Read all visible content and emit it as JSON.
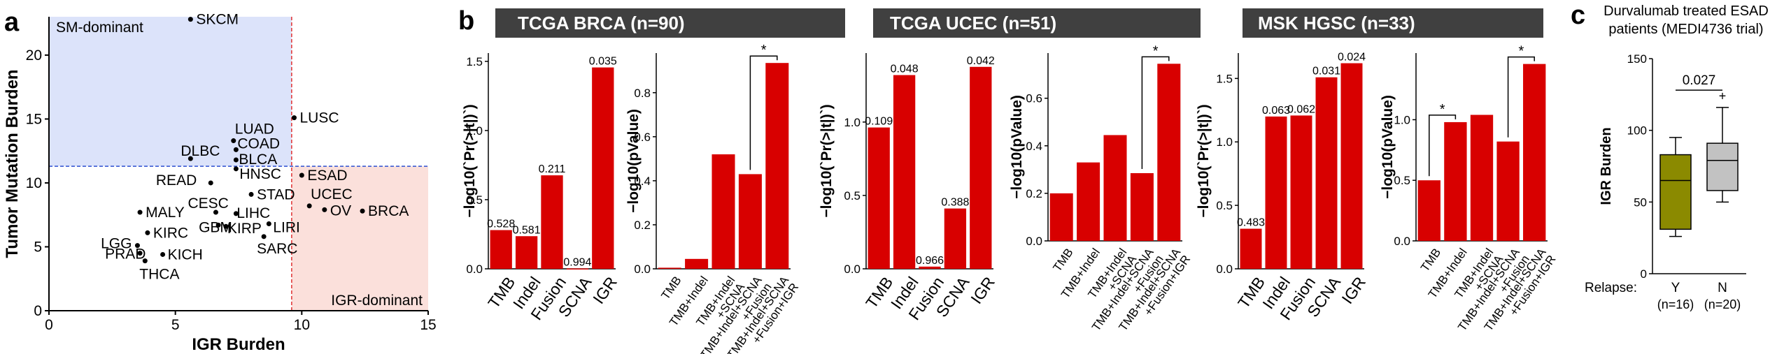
{
  "panel_letters": {
    "a": "a",
    "b": "b",
    "c": "c"
  },
  "banners": [
    "TCGA BRCA (n=90)",
    "TCGA UCEC (n=51)",
    "MSK HGSC (n=33)"
  ],
  "panel_c_title_line1": "Durvalumab treated ESAD",
  "panel_c_title_line2": "patients (MEDI4736 trial)",
  "colors": {
    "bar": "#d80000",
    "sm_region": "#dce3fa",
    "igr_region": "#fbe0db",
    "sm_text": "#2d4fd0",
    "igr_text": "#d8443c",
    "box_y": "#8b8a00",
    "box_n": "#c2c2c2",
    "banner": "#404040"
  },
  "chart_data": [
    {
      "id": "scatter",
      "type": "scatter",
      "xlabel": "IGR Burden",
      "ylabel": "Tumor Mutation Burden",
      "xlim": [
        0,
        15
      ],
      "ylim": [
        0,
        23
      ],
      "xticks": [
        0,
        5,
        10,
        15
      ],
      "yticks": [
        0,
        5,
        10,
        15,
        20
      ],
      "regions": {
        "sm_label": "SM-dominant",
        "igr_label": "IGR-dominant",
        "x_cut": 9.6,
        "y_cut": 11.3
      },
      "points": [
        {
          "label": "SKCM",
          "x": 5.6,
          "y": 22.8
        },
        {
          "label": "LUSC",
          "x": 9.7,
          "y": 15.1
        },
        {
          "label": "LUAD",
          "x": 7.3,
          "y": 13.3
        },
        {
          "label": "COAD",
          "x": 7.4,
          "y": 12.6
        },
        {
          "label": "BLCA",
          "x": 7.4,
          "y": 11.8
        },
        {
          "label": "DLBC",
          "x": 5.6,
          "y": 11.9
        },
        {
          "label": "READ",
          "x": 6.4,
          "y": 10.0
        },
        {
          "label": "HNSC",
          "x": 7.4,
          "y": 11.1
        },
        {
          "label": "ESAD",
          "x": 10.0,
          "y": 10.6
        },
        {
          "label": "STAD",
          "x": 8.0,
          "y": 9.1
        },
        {
          "label": "UCEC",
          "x": 10.3,
          "y": 8.2
        },
        {
          "label": "OV",
          "x": 10.9,
          "y": 7.9
        },
        {
          "label": "BRCA",
          "x": 12.4,
          "y": 7.8
        },
        {
          "label": "MALY",
          "x": 3.6,
          "y": 7.7
        },
        {
          "label": "CESC",
          "x": 6.6,
          "y": 7.7
        },
        {
          "label": "LIHC",
          "x": 7.4,
          "y": 7.6
        },
        {
          "label": "GBM",
          "x": 6.7,
          "y": 6.7
        },
        {
          "label": "KIRP",
          "x": 7.0,
          "y": 6.6
        },
        {
          "label": "LIRI",
          "x": 8.7,
          "y": 6.8
        },
        {
          "label": "KIRC",
          "x": 3.9,
          "y": 6.1
        },
        {
          "label": "SARC",
          "x": 8.5,
          "y": 5.8
        },
        {
          "label": "LGG",
          "x": 3.5,
          "y": 5.1
        },
        {
          "label": "PRAD",
          "x": 3.6,
          "y": 4.5
        },
        {
          "label": "KICH",
          "x": 4.5,
          "y": 4.4
        },
        {
          "label": "THCA",
          "x": 3.8,
          "y": 3.9
        }
      ]
    },
    {
      "id": "brca_pr",
      "type": "bar",
      "ylabel": "−log10(`Pr(>|t|)`)",
      "categories": [
        "TMB",
        "Indel",
        "Fusion",
        "SCNA",
        "IGR"
      ],
      "values": [
        0.28,
        0.236,
        0.676,
        0.0026,
        1.456
      ],
      "data_labels": [
        "0.528",
        "0.581",
        "0.211",
        "0.994",
        "0.035"
      ],
      "ylim": [
        0,
        1.56
      ],
      "yticks": [
        0.0,
        0.5,
        1.0,
        1.5
      ]
    },
    {
      "id": "brca_p",
      "type": "bar",
      "ylabel": "−log10(pValue)",
      "categories": [
        "TMB",
        "TMB+Indel",
        "TMB+Indel\n+SCNA",
        "TMB+Indel+SCNA\n+Fusion",
        "TMB+Indel+SCNA\n+Fusion+IGR"
      ],
      "values": [
        0.005,
        0.045,
        0.52,
        0.43,
        0.935
      ],
      "ylim": [
        0,
        0.98
      ],
      "yticks": [
        0.0,
        0.2,
        0.4,
        0.6,
        0.8
      ],
      "significance": {
        "from": 3,
        "to": 4,
        "label": "*"
      }
    },
    {
      "id": "ucec_pr",
      "type": "bar",
      "ylabel": "−log10(`Pr(>|t|)`)",
      "categories": [
        "TMB",
        "Indel",
        "Fusion",
        "SCNA",
        "IGR"
      ],
      "values": [
        0.963,
        1.32,
        0.015,
        0.411,
        1.376
      ],
      "data_labels": [
        "0.109",
        "0.048",
        "0.966",
        "0.388",
        "0.042"
      ],
      "ylim": [
        0,
        1.47
      ],
      "yticks": [
        0.0,
        0.5,
        1.0
      ],
      "significance": null
    },
    {
      "id": "ucec_p",
      "type": "bar",
      "ylabel": "−log10(pValue)",
      "categories": [
        "TMB",
        "TMB+Indel",
        "TMB+Indel\n+SCNA",
        "TMB+Indel+SCNA\n+Fusion",
        "TMB+Indel+SCNA\n+Fusion+IGR"
      ],
      "values": [
        0.2,
        0.33,
        0.445,
        0.285,
        0.745
      ],
      "ylim": [
        0,
        0.79
      ],
      "yticks": [
        0.0,
        0.2,
        0.4,
        0.6
      ],
      "significance": {
        "from": 3,
        "to": 4,
        "label": "*"
      }
    },
    {
      "id": "hgsc_pr",
      "type": "bar",
      "ylabel": "−log10(`Pr(>|t|)`)",
      "categories": [
        "TMB",
        "Indel",
        "Fusion",
        "SCNA",
        "IGR"
      ],
      "values": [
        0.316,
        1.2,
        1.208,
        1.509,
        1.62
      ],
      "data_labels": [
        "0.483",
        "0.063",
        "0.062",
        "0.031",
        "0.024"
      ],
      "ylim": [
        0,
        1.7
      ],
      "yticks": [
        0.0,
        0.5,
        1.0,
        1.5
      ]
    },
    {
      "id": "hgsc_p",
      "type": "bar",
      "ylabel": "−log10(pValue)",
      "categories": [
        "TMB",
        "TMB+Indel",
        "TMB+Indel\n+SCNA",
        "TMB+Indel+SCNA\n+Fusion",
        "TMB+Indel+SCNA\n+Fusion+IGR"
      ],
      "values": [
        0.5,
        0.98,
        1.04,
        0.82,
        1.46
      ],
      "ylim": [
        0,
        1.55
      ],
      "yticks": [
        0.0,
        0.5,
        1.0
      ],
      "significance_list": [
        {
          "from": 0,
          "to": 1,
          "label": "*"
        },
        {
          "from": 3,
          "to": 4,
          "label": "*"
        }
      ]
    },
    {
      "id": "box",
      "type": "box",
      "ylabel": "IGR Burden",
      "ylim": [
        0,
        150
      ],
      "yticks": [
        0,
        50,
        100,
        150
      ],
      "row_label": "Relapse:",
      "groups": [
        {
          "name": "Y",
          "n": "(n=16)",
          "min": 26,
          "q1": 31,
          "median": 65,
          "q3": 83,
          "max": 95,
          "outliers": []
        },
        {
          "name": "N",
          "n": "(n=20)",
          "min": 50,
          "q1": 58,
          "median": 79,
          "q3": 91,
          "max": 116,
          "outliers": [
            124
          ]
        }
      ],
      "pvalue": "0.027"
    }
  ]
}
